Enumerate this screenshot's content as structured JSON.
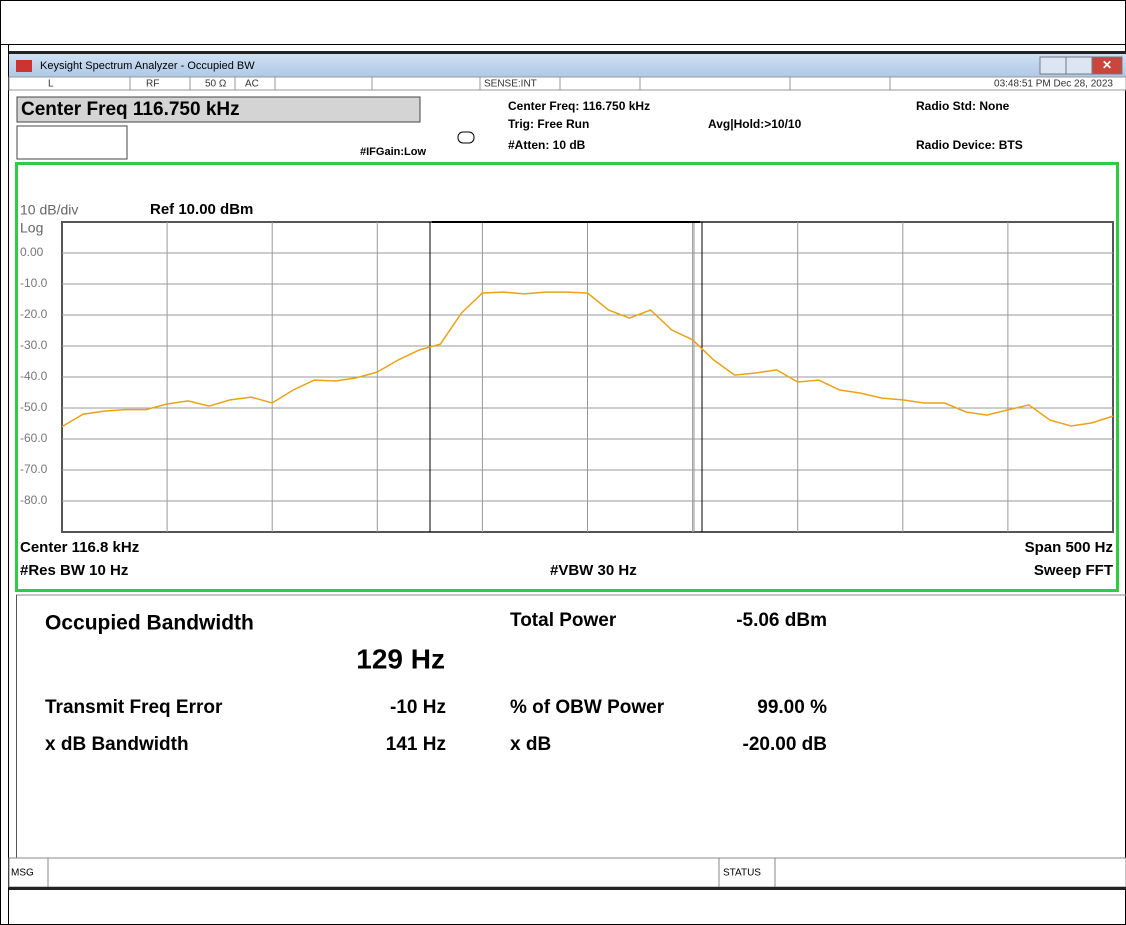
{
  "window": {
    "title": "Keysight Spectrum Analyzer - Occupied BW",
    "status_row": [
      "L",
      "RF",
      "50 Ω",
      "AC",
      "SENSE:INT",
      "03:48:51 PM Dec 28, 2023"
    ],
    "center_freq_box": "Center Freq 116.750 kHz",
    "if_gain": "#IFGain:Low",
    "settings": [
      "Center Freq: 116.750 kHz",
      "Trig: Free Run",
      "#Atten: 10 dB"
    ],
    "avg_hold": "Avg|Hold:>10/10",
    "radio_std": "Radio Std: None",
    "radio_device": "Radio Device: BTS",
    "msg": "MSG",
    "status": "STATUS"
  },
  "chart_data": {
    "type": "line",
    "scale_label": "10 dB/div",
    "ref_label": "Ref 10.00 dBm",
    "scale_type": "Log",
    "center_label": "Center  116.8 kHz",
    "span_label": "Span 500 Hz",
    "rbw_label": "#Res BW  10 Hz",
    "vbw_label": "#VBW  30 Hz",
    "sweep_label": "Sweep FFT",
    "xlim": [
      116.5,
      117.0
    ],
    "ylim": [
      -90,
      10
    ],
    "yticks": [
      {
        "value": 0,
        "label": "0.00"
      },
      {
        "value": -10,
        "label": "-10.0"
      },
      {
        "value": -20,
        "label": "-20.0"
      },
      {
        "value": -30,
        "label": "-30.0"
      },
      {
        "value": -40,
        "label": "-40.0"
      },
      {
        "value": -50,
        "label": "-50.0"
      },
      {
        "value": -60,
        "label": "-60.0"
      },
      {
        "value": -70,
        "label": "-70.0"
      },
      {
        "value": -80,
        "label": "-80.0"
      }
    ],
    "grid": true,
    "x": [
      116.5,
      116.51,
      116.52,
      116.53,
      116.54,
      116.55,
      116.56,
      116.57,
      116.58,
      116.59,
      116.6,
      116.61,
      116.62,
      116.63,
      116.64,
      116.65,
      116.66,
      116.67,
      116.68,
      116.69,
      116.7,
      116.71,
      116.72,
      116.73,
      116.74,
      116.75,
      116.76,
      116.77,
      116.78,
      116.79,
      116.8,
      116.81,
      116.82,
      116.83,
      116.84,
      116.85,
      116.86,
      116.87,
      116.88,
      116.89,
      116.9,
      116.91,
      116.92,
      116.93,
      116.94,
      116.95,
      116.96,
      116.97,
      116.98,
      116.99,
      117.0
    ],
    "series": [
      {
        "color": "#e8a317",
        "values": [
          -56,
          -52,
          -51,
          -50.5,
          -50.5,
          -48.7,
          -47.7,
          -49.4,
          -47.4,
          -46.5,
          -48.4,
          -44.2,
          -41,
          -41.3,
          -40.3,
          -38.4,
          -34.5,
          -31.3,
          -29.4,
          -19.4,
          -12.9,
          -12.6,
          -13.2,
          -12.6,
          -12.6,
          -12.9,
          -18.4,
          -21,
          -18.4,
          -24.8,
          -28,
          -34.5,
          -39.4,
          -38.7,
          -37.7,
          -41.6,
          -41,
          -44.2,
          -45.2,
          -46.8,
          -47.4,
          -48.4,
          -48.4,
          -51.3,
          -52.3,
          -50.6,
          -49,
          -53.9,
          -55.8,
          -54.8,
          -52.6
        ]
      }
    ]
  },
  "results": {
    "obw_title": "Occupied Bandwidth",
    "obw_value": "129 Hz",
    "total_power_label": "Total Power",
    "total_power_value": "-5.06 dBm",
    "tfe_label": "Transmit Freq Error",
    "tfe_value": "-10 Hz",
    "obw_power_label": "% of OBW Power",
    "obw_power_value": "99.00 %",
    "xdb_bw_label": "x dB Bandwidth",
    "xdb_bw_value": "141 Hz",
    "xdb_label": "x dB",
    "xdb_value": "-20.00 dB"
  }
}
